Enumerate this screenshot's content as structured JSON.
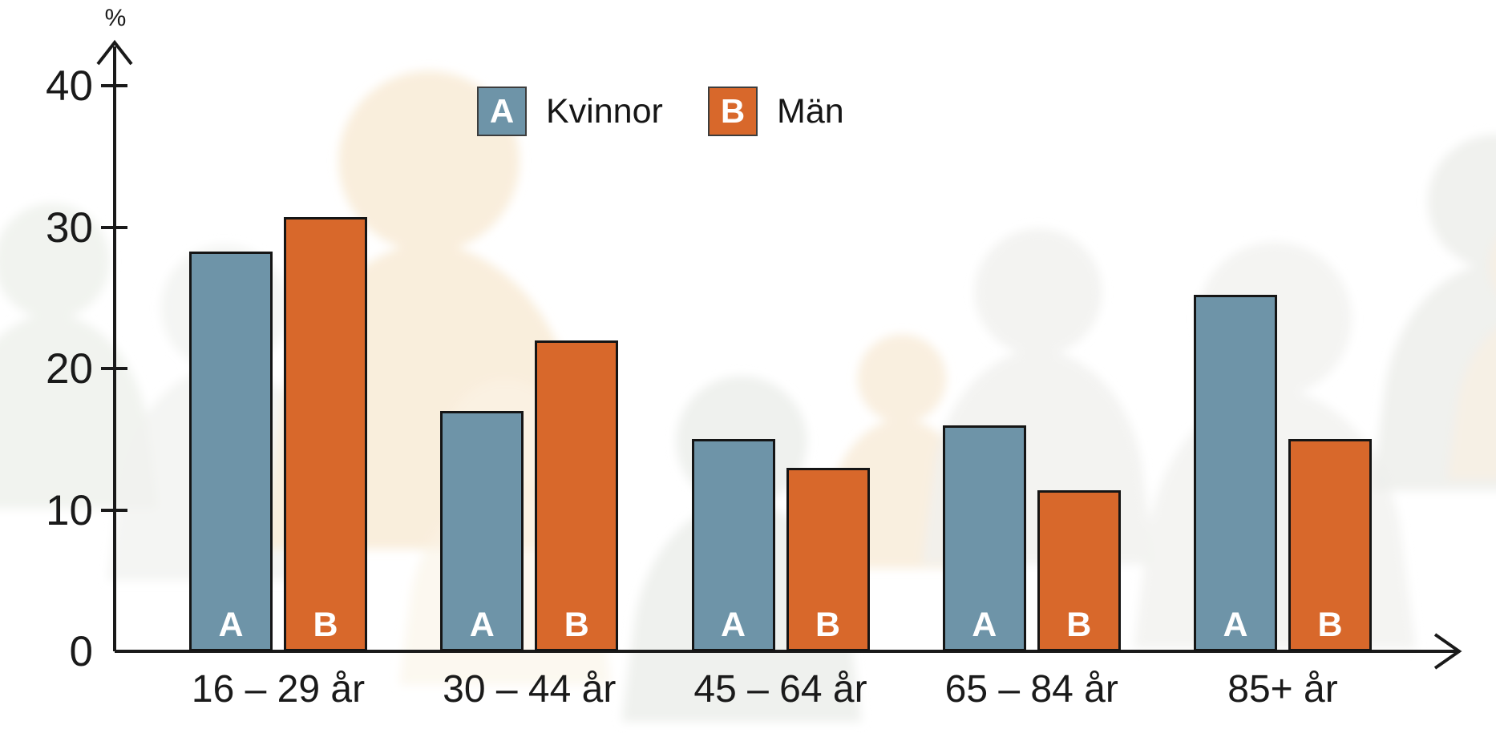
{
  "chart_data": {
    "type": "bar",
    "title": "",
    "y_axis_unit": "%",
    "categories": [
      "16 – 29 år",
      "30 – 44 år",
      "45 – 64 år",
      "65 – 84 år",
      "85+ år"
    ],
    "series": [
      {
        "id": "A",
        "name": "Kvinnor",
        "color": "#6e94a8",
        "values": [
          28.3,
          17.0,
          15.0,
          16.0,
          25.2
        ]
      },
      {
        "id": "B",
        "name": "Män",
        "color": "#d8682b",
        "values": [
          30.7,
          22.0,
          13.0,
          11.4,
          15.0
        ]
      }
    ],
    "yticks": [
      0,
      10,
      20,
      30,
      40
    ],
    "ylim": [
      0,
      43
    ],
    "grid": false,
    "legend_position": "top-center",
    "bar_letters_inside": true
  },
  "colors": {
    "kvinnor_blue": "#6e94a8",
    "man_orange": "#d8682b",
    "axis_black": "#1a1a1a",
    "bar_border": "#151515",
    "bar_letter_white": "#ffffff",
    "silhouette_warm": "#f9eedb",
    "silhouette_gray": "#f0f1ee",
    "background": "#ffffff"
  }
}
